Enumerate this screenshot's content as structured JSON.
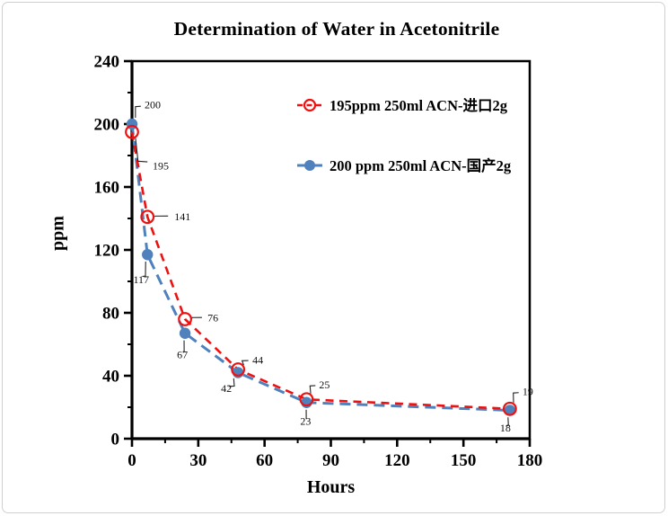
{
  "page": {
    "background": "#ffffff",
    "border_color": "#cfd0d2"
  },
  "chart_data": {
    "type": "line",
    "title": "Determination of Water in Acetonitrile",
    "xlabel": "Hours",
    "ylabel": "ppm",
    "xlim": [
      0,
      180
    ],
    "ylim": [
      0,
      240
    ],
    "xticks": [
      0,
      30,
      60,
      90,
      120,
      150,
      180
    ],
    "yticks": [
      0,
      40,
      80,
      120,
      160,
      200,
      240
    ],
    "x_minor_step": 15,
    "y_minor_step": 20,
    "grid": false,
    "legend_position": "top-right-inside",
    "axis_color": "#000000",
    "point_label_color": "#111111",
    "series": [
      {
        "name": "195ppm  250ml ACN-进口2g",
        "color": "#ee1111",
        "marker": "open-circle",
        "line_style": "dashed",
        "x": [
          0,
          7,
          24,
          48,
          79,
          171
        ],
        "y": [
          195,
          141,
          76,
          44,
          25,
          19
        ],
        "point_labels": [
          "195",
          "141",
          "76",
          "44",
          "25",
          "19"
        ],
        "label_offsets": [
          [
            21,
            37
          ],
          [
            28,
            -1
          ],
          [
            23,
            -2
          ],
          [
            14,
            -11
          ],
          [
            12,
            -17
          ],
          [
            12,
            -20
          ]
        ]
      },
      {
        "name": "200 ppm 250ml ACN-国产2g",
        "color": "#4f81bd",
        "marker": "filled-circle",
        "line_style": "dashed",
        "x": [
          0,
          7,
          24,
          48,
          79,
          171
        ],
        "y": [
          200,
          117,
          67,
          42,
          23,
          18
        ],
        "point_labels": [
          "200",
          "117",
          "67",
          "42",
          "23",
          "18"
        ],
        "label_offsets": [
          [
            12,
            -22
          ],
          [
            -7,
            27
          ],
          [
            -3,
            23
          ],
          [
            -13,
            17
          ],
          [
            -1,
            20
          ],
          [
            -5,
            19
          ]
        ]
      }
    ]
  }
}
